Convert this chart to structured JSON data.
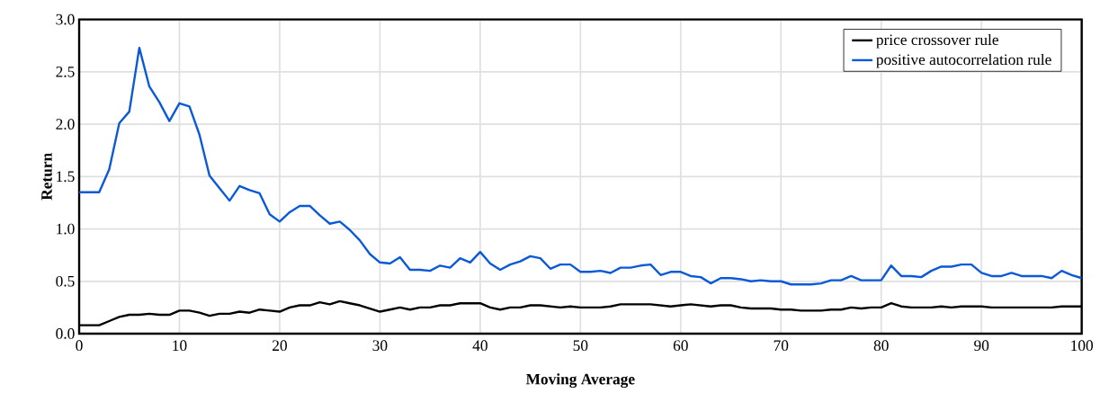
{
  "chart_data": {
    "type": "line",
    "xlabel": "Moving Average",
    "ylabel": "Return",
    "x": [
      0,
      1,
      2,
      3,
      4,
      5,
      6,
      7,
      8,
      9,
      10,
      11,
      12,
      13,
      14,
      15,
      16,
      17,
      18,
      19,
      20,
      21,
      22,
      23,
      24,
      25,
      26,
      27,
      28,
      29,
      30,
      31,
      32,
      33,
      34,
      35,
      36,
      37,
      38,
      39,
      40,
      41,
      42,
      43,
      44,
      45,
      46,
      47,
      48,
      49,
      50,
      51,
      52,
      53,
      54,
      55,
      56,
      57,
      58,
      59,
      60,
      61,
      62,
      63,
      64,
      65,
      66,
      67,
      68,
      69,
      70,
      71,
      72,
      73,
      74,
      75,
      76,
      77,
      78,
      79,
      80,
      81,
      82,
      83,
      84,
      85,
      86,
      87,
      88,
      89,
      90,
      91,
      92,
      93,
      94,
      95,
      96,
      97,
      98,
      99,
      100
    ],
    "series": [
      {
        "name": "price crossover rule",
        "color": "#000000",
        "values": [
          0.08,
          0.08,
          0.08,
          0.12,
          0.16,
          0.18,
          0.18,
          0.19,
          0.18,
          0.18,
          0.22,
          0.22,
          0.2,
          0.17,
          0.19,
          0.19,
          0.21,
          0.2,
          0.23,
          0.22,
          0.21,
          0.25,
          0.27,
          0.27,
          0.3,
          0.28,
          0.31,
          0.29,
          0.27,
          0.24,
          0.21,
          0.23,
          0.25,
          0.23,
          0.25,
          0.25,
          0.27,
          0.27,
          0.29,
          0.29,
          0.29,
          0.25,
          0.23,
          0.25,
          0.25,
          0.27,
          0.27,
          0.26,
          0.25,
          0.26,
          0.25,
          0.25,
          0.25,
          0.26,
          0.28,
          0.28,
          0.28,
          0.28,
          0.27,
          0.26,
          0.27,
          0.28,
          0.27,
          0.26,
          0.27,
          0.27,
          0.25,
          0.24,
          0.24,
          0.24,
          0.23,
          0.23,
          0.22,
          0.22,
          0.22,
          0.23,
          0.23,
          0.25,
          0.24,
          0.25,
          0.25,
          0.29,
          0.26,
          0.25,
          0.25,
          0.25,
          0.26,
          0.25,
          0.26,
          0.26,
          0.26,
          0.25,
          0.25,
          0.25,
          0.25,
          0.25,
          0.25,
          0.25,
          0.26,
          0.26,
          0.26
        ]
      },
      {
        "name": "positive autocorrelation rule",
        "color": "#0a5ad8",
        "values": [
          1.35,
          1.35,
          1.35,
          1.57,
          2.01,
          2.12,
          2.73,
          2.36,
          2.21,
          2.03,
          2.2,
          2.17,
          1.9,
          1.51,
          1.39,
          1.27,
          1.41,
          1.37,
          1.34,
          1.14,
          1.07,
          1.16,
          1.22,
          1.22,
          1.13,
          1.05,
          1.07,
          0.99,
          0.89,
          0.76,
          0.68,
          0.67,
          0.73,
          0.61,
          0.61,
          0.6,
          0.65,
          0.63,
          0.72,
          0.68,
          0.78,
          0.67,
          0.61,
          0.66,
          0.69,
          0.74,
          0.72,
          0.62,
          0.66,
          0.66,
          0.59,
          0.59,
          0.6,
          0.58,
          0.63,
          0.63,
          0.65,
          0.66,
          0.56,
          0.59,
          0.59,
          0.55,
          0.54,
          0.48,
          0.53,
          0.53,
          0.52,
          0.5,
          0.51,
          0.5,
          0.5,
          0.47,
          0.47,
          0.47,
          0.48,
          0.51,
          0.51,
          0.55,
          0.51,
          0.51,
          0.51,
          0.65,
          0.55,
          0.55,
          0.54,
          0.6,
          0.64,
          0.64,
          0.66,
          0.66,
          0.58,
          0.55,
          0.55,
          0.58,
          0.55,
          0.55,
          0.55,
          0.53,
          0.6,
          0.56,
          0.53
        ]
      }
    ],
    "xlim": [
      0,
      100
    ],
    "xticks": [
      0,
      10,
      20,
      30,
      40,
      50,
      60,
      70,
      80,
      90,
      100
    ],
    "ylim": [
      0,
      3
    ],
    "yticks": [
      {
        "value": 0,
        "label": "0.0"
      },
      0.5,
      {
        "value": 1,
        "label": "1.0"
      },
      1.5,
      {
        "value": 2,
        "label": "2.0"
      },
      2.5,
      {
        "value": 3,
        "label": "3.0"
      }
    ],
    "grid": true,
    "legend": "top right",
    "marker": "none",
    "line_style": "solid"
  }
}
